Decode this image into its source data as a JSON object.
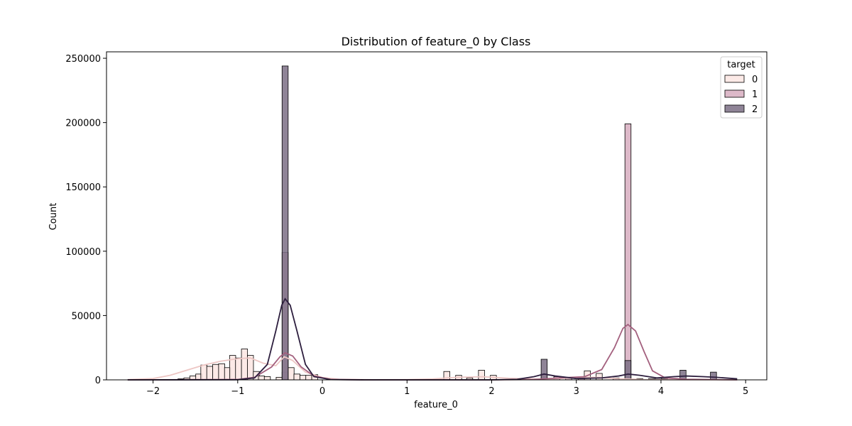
{
  "chart_data": {
    "type": "histogram",
    "title": "Distribution of feature_0 by Class",
    "xlabel": "feature_0",
    "ylabel": "Count",
    "xlim": [
      -2.55,
      5.25
    ],
    "ylim": [
      0,
      255000
    ],
    "xticks": [
      -2,
      -1,
      0,
      1,
      2,
      3,
      4,
      5
    ],
    "xtick_labels": [
      "−2",
      "−1",
      "0",
      "1",
      "2",
      "3",
      "4",
      "5"
    ],
    "yticks": [
      0,
      50000,
      100000,
      150000,
      200000,
      250000
    ],
    "ytick_labels": [
      "0",
      "50000",
      "100000",
      "150000",
      "200000",
      "250000"
    ],
    "grid": false,
    "legend": {
      "title": "target",
      "placement": "top-right"
    },
    "bin_width": 0.072,
    "series": [
      {
        "name": "0",
        "color": "#fbe6e3",
        "kde_color": "#edc6c4",
        "bins": [
          [
            -1.67,
            800
          ],
          [
            -1.6,
            1500
          ],
          [
            -1.53,
            3000
          ],
          [
            -1.46,
            4500
          ],
          [
            -1.4,
            11500
          ],
          [
            -1.33,
            10500
          ],
          [
            -1.26,
            12000
          ],
          [
            -1.19,
            12500
          ],
          [
            -1.12,
            9500
          ],
          [
            -1.06,
            19000
          ],
          [
            -0.99,
            17000
          ],
          [
            -0.92,
            24000
          ],
          [
            -0.85,
            19000
          ],
          [
            -0.78,
            6500
          ],
          [
            -0.72,
            3000
          ],
          [
            -0.65,
            2500
          ],
          [
            -0.51,
            2000
          ],
          [
            -0.44,
            6000
          ],
          [
            -0.37,
            9500
          ],
          [
            -0.3,
            4500
          ],
          [
            -0.23,
            3500
          ],
          [
            -0.16,
            3500
          ],
          [
            -0.09,
            4000
          ],
          [
            1.47,
            6500
          ],
          [
            1.61,
            3500
          ],
          [
            1.74,
            1500
          ],
          [
            1.88,
            7500
          ],
          [
            2.02,
            3500
          ],
          [
            3.13,
            7000
          ],
          [
            3.27,
            5000
          ]
        ],
        "kde": [
          [
            -2.3,
            200
          ],
          [
            -2.0,
            1000
          ],
          [
            -1.8,
            3500
          ],
          [
            -1.6,
            7500
          ],
          [
            -1.4,
            11500
          ],
          [
            -1.2,
            14500
          ],
          [
            -1.0,
            16500
          ],
          [
            -0.85,
            17000
          ],
          [
            -0.7,
            13000
          ],
          [
            -0.55,
            11000
          ],
          [
            -0.45,
            18000
          ],
          [
            -0.35,
            15000
          ],
          [
            -0.2,
            6000
          ],
          [
            0.0,
            1800
          ],
          [
            0.2,
            400
          ],
          [
            0.6,
            100
          ],
          [
            1.0,
            200
          ],
          [
            1.3,
            700
          ],
          [
            1.6,
            2000
          ],
          [
            1.9,
            2400
          ],
          [
            2.2,
            1200
          ],
          [
            2.6,
            500
          ],
          [
            3.0,
            1500
          ],
          [
            3.2,
            2000
          ],
          [
            3.4,
            1200
          ],
          [
            3.8,
            200
          ],
          [
            4.9,
            0
          ]
        ]
      },
      {
        "name": "1",
        "color": "#d7adbf",
        "kde_color": "#a3607e",
        "bins": [
          [
            -0.44,
            99000
          ],
          [
            3.61,
            199000
          ],
          [
            2.62,
            4500
          ],
          [
            2.77,
            2500
          ],
          [
            2.91,
            1500
          ],
          [
            3.06,
            1500
          ],
          [
            3.47,
            1500
          ],
          [
            3.75,
            1000
          ],
          [
            3.89,
            1000
          ],
          [
            4.04,
            1000
          ]
        ],
        "kde": [
          [
            -2.3,
            0
          ],
          [
            -1.0,
            300
          ],
          [
            -0.8,
            2000
          ],
          [
            -0.6,
            10000
          ],
          [
            -0.5,
            18000
          ],
          [
            -0.44,
            21000
          ],
          [
            -0.35,
            18500
          ],
          [
            -0.25,
            10000
          ],
          [
            -0.1,
            3000
          ],
          [
            0.1,
            300
          ],
          [
            0.5,
            0
          ],
          [
            2.0,
            0
          ],
          [
            2.5,
            300
          ],
          [
            2.8,
            1500
          ],
          [
            3.1,
            2500
          ],
          [
            3.3,
            8000
          ],
          [
            3.45,
            25000
          ],
          [
            3.55,
            40000
          ],
          [
            3.61,
            43000
          ],
          [
            3.7,
            38000
          ],
          [
            3.8,
            22000
          ],
          [
            3.9,
            7000
          ],
          [
            4.05,
            1500
          ],
          [
            4.3,
            500
          ],
          [
            4.9,
            0
          ]
        ]
      },
      {
        "name": "2",
        "color": "#7b6f85",
        "kde_color": "#2d1e3e",
        "bins": [
          [
            -0.44,
            244000
          ],
          [
            3.61,
            15000
          ],
          [
            2.62,
            16000
          ],
          [
            4.26,
            7500
          ],
          [
            4.62,
            6000
          ],
          [
            3.97,
            1500
          ]
        ],
        "kde": [
          [
            -2.3,
            0
          ],
          [
            -1.0,
            100
          ],
          [
            -0.8,
            1500
          ],
          [
            -0.65,
            12000
          ],
          [
            -0.55,
            38000
          ],
          [
            -0.48,
            58000
          ],
          [
            -0.44,
            63000
          ],
          [
            -0.38,
            58000
          ],
          [
            -0.3,
            38000
          ],
          [
            -0.2,
            12000
          ],
          [
            -0.1,
            2500
          ],
          [
            0.1,
            200
          ],
          [
            0.5,
            0
          ],
          [
            2.0,
            0
          ],
          [
            2.3,
            400
          ],
          [
            2.5,
            2500
          ],
          [
            2.62,
            4500
          ],
          [
            2.75,
            3000
          ],
          [
            3.0,
            1000
          ],
          [
            3.3,
            1500
          ],
          [
            3.5,
            3000
          ],
          [
            3.61,
            4500
          ],
          [
            3.75,
            3500
          ],
          [
            3.95,
            1500
          ],
          [
            4.15,
            2500
          ],
          [
            4.3,
            3000
          ],
          [
            4.5,
            2500
          ],
          [
            4.65,
            2000
          ],
          [
            4.9,
            800
          ]
        ]
      }
    ]
  }
}
